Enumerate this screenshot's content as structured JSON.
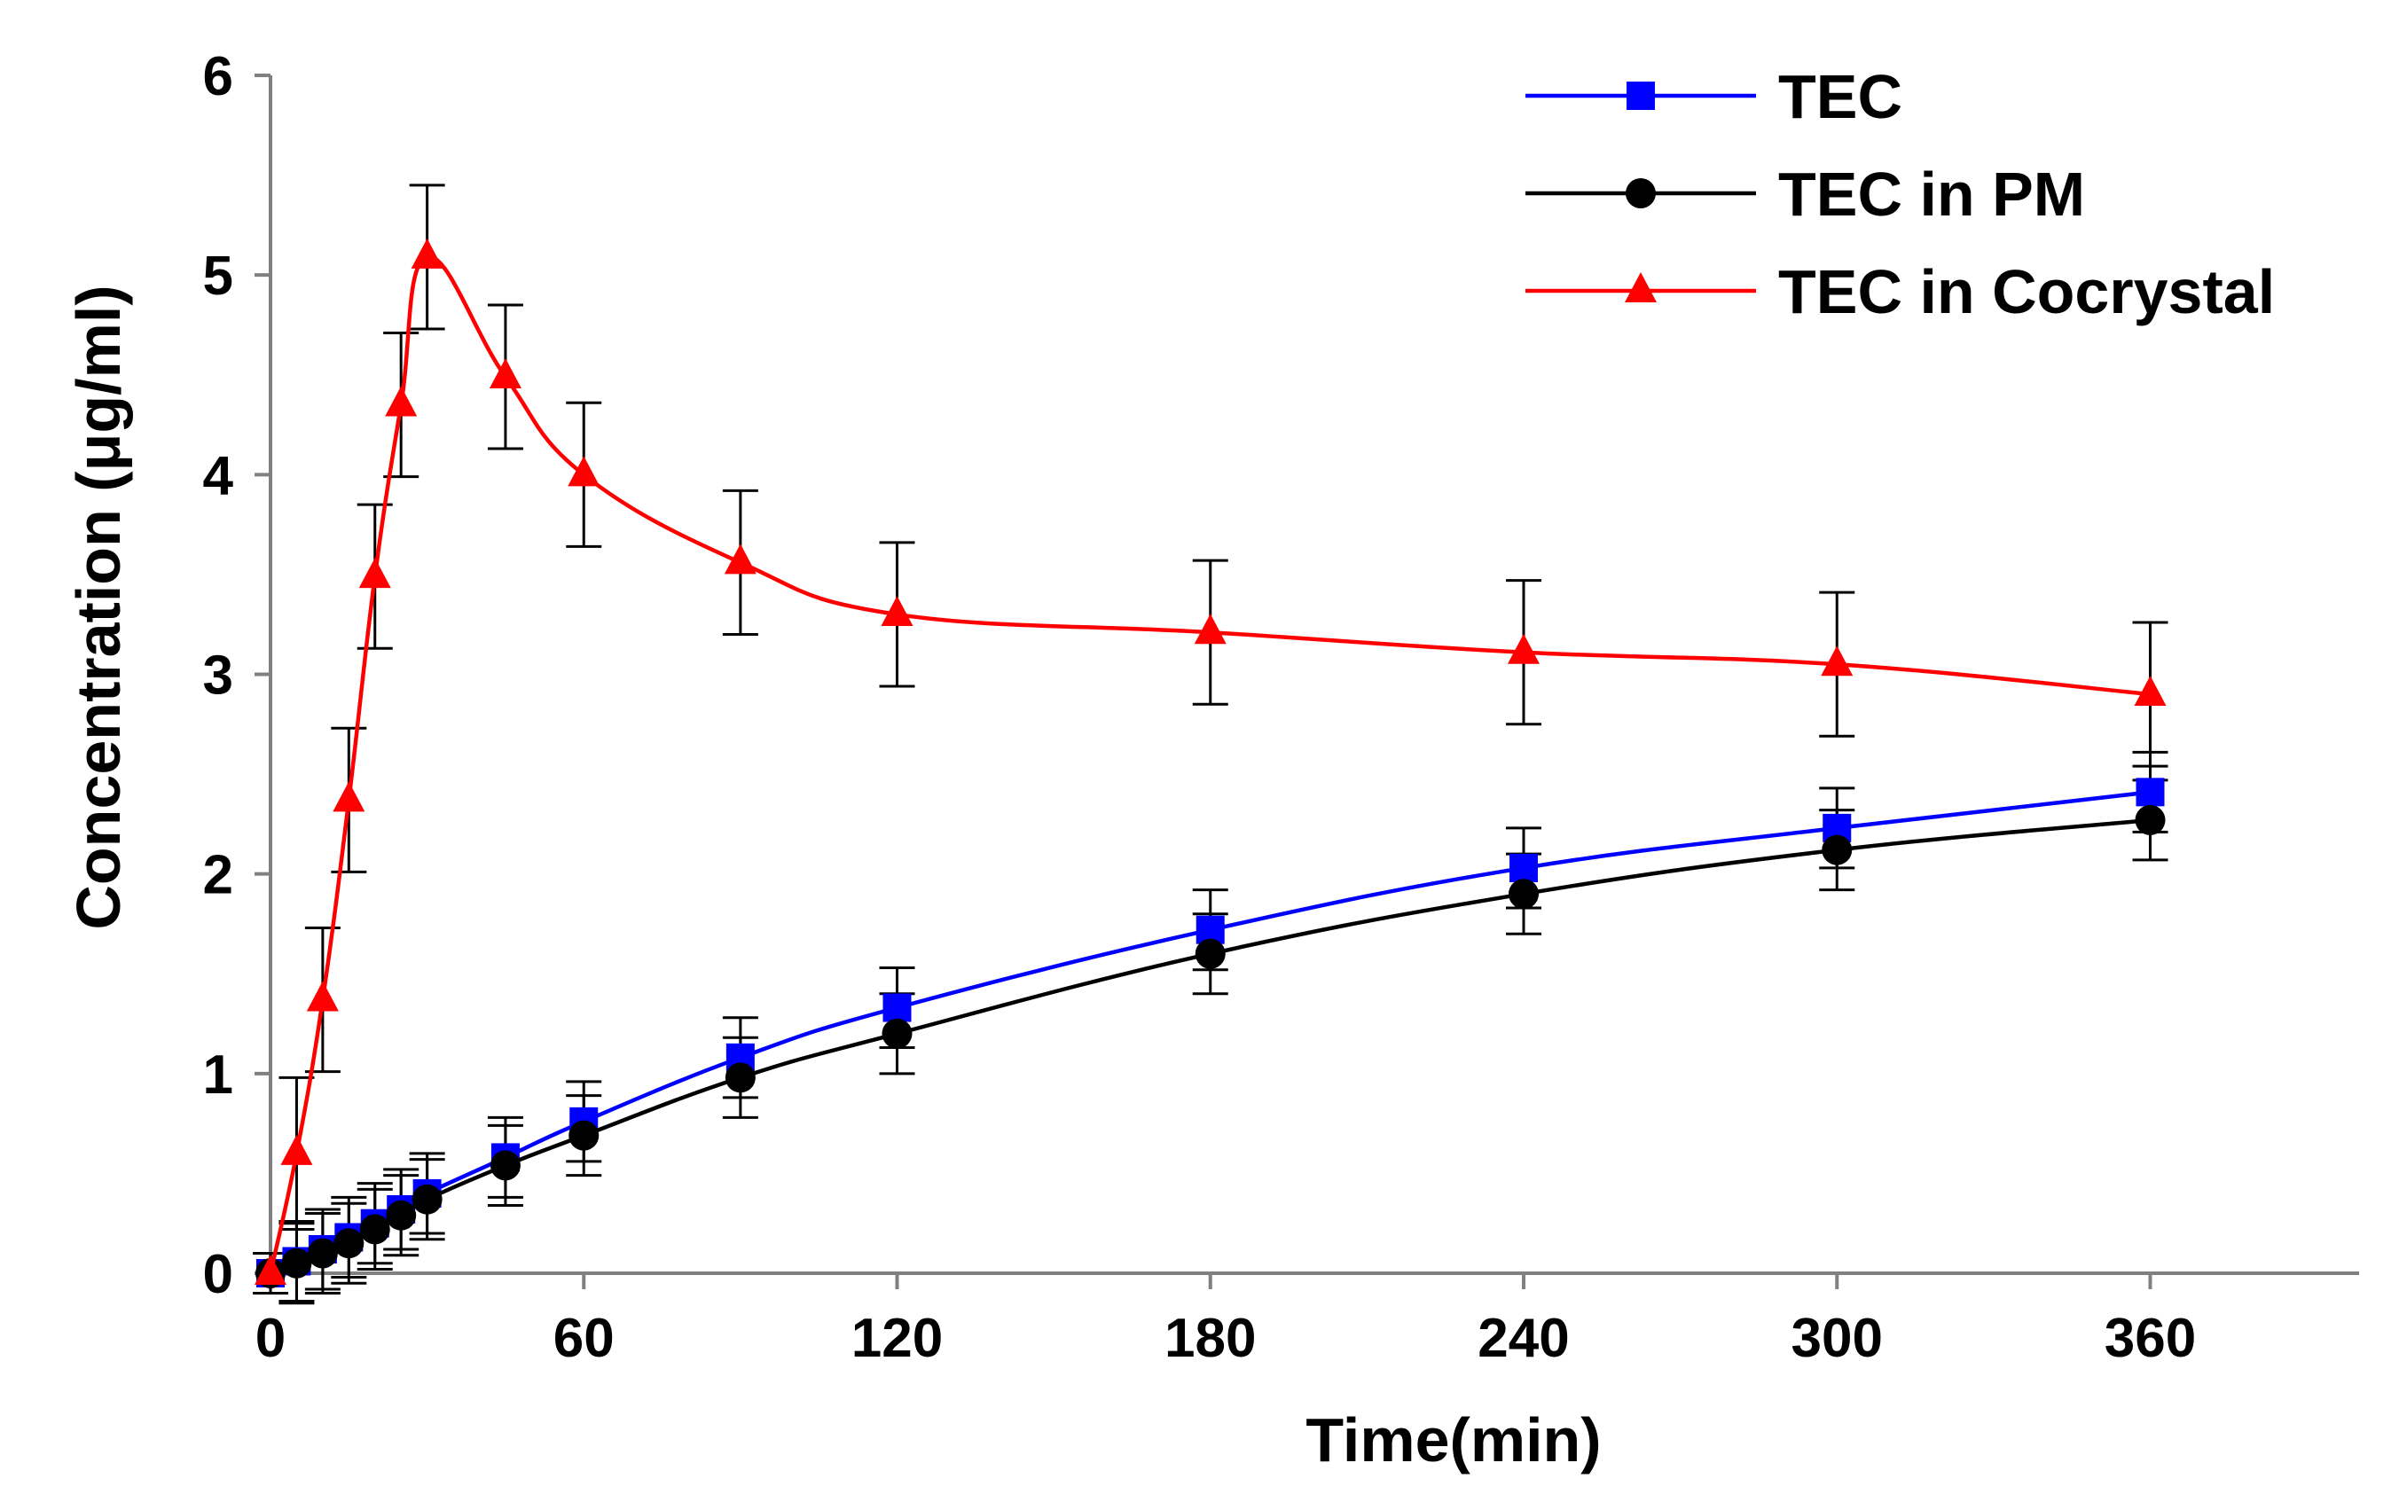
{
  "chart_data": {
    "type": "line",
    "title": "",
    "xlabel": "Time(min)",
    "ylabel": "Concentration (μg/ml)",
    "xlim": [
      0,
      400
    ],
    "ylim": [
      0,
      6
    ],
    "xticks": [
      0,
      60,
      120,
      180,
      240,
      300,
      360
    ],
    "yticks": [
      0,
      1,
      2,
      3,
      4,
      5,
      6
    ],
    "grid": false,
    "legend_position": "top-right",
    "x": [
      0,
      5,
      10,
      15,
      20,
      25,
      30,
      45,
      60,
      90,
      120,
      180,
      240,
      300,
      360
    ],
    "series": [
      {
        "name": "TEC",
        "color": "#0000ff",
        "marker": "square",
        "values": [
          0,
          0.06,
          0.12,
          0.18,
          0.25,
          0.32,
          0.4,
          0.58,
          0.76,
          1.08,
          1.33,
          1.72,
          2.03,
          2.23,
          2.41
        ],
        "errors": [
          0.1,
          0.2,
          0.2,
          0.2,
          0.2,
          0.2,
          0.2,
          0.2,
          0.2,
          0.2,
          0.2,
          0.2,
          0.2,
          0.2,
          0.2
        ]
      },
      {
        "name": "TEC in PM",
        "color": "#000000",
        "marker": "circle",
        "values": [
          0,
          0.05,
          0.1,
          0.15,
          0.22,
          0.29,
          0.37,
          0.54,
          0.69,
          0.98,
          1.2,
          1.6,
          1.9,
          2.12,
          2.27
        ],
        "errors": [
          0.1,
          0.2,
          0.2,
          0.2,
          0.2,
          0.2,
          0.2,
          0.2,
          0.2,
          0.2,
          0.2,
          0.2,
          0.2,
          0.2,
          0.2
        ]
      },
      {
        "name": "TEC in Cocrystal",
        "color": "#ff0000",
        "marker": "triangle",
        "values": [
          0,
          0.6,
          1.37,
          2.37,
          3.49,
          4.35,
          5.09,
          4.49,
          4.0,
          3.56,
          3.3,
          3.21,
          3.11,
          3.05,
          2.9
        ],
        "errors": [
          0.1,
          0.38,
          0.36,
          0.36,
          0.36,
          0.36,
          0.36,
          0.36,
          0.36,
          0.36,
          0.36,
          0.36,
          0.36,
          0.36,
          0.36
        ]
      }
    ]
  }
}
